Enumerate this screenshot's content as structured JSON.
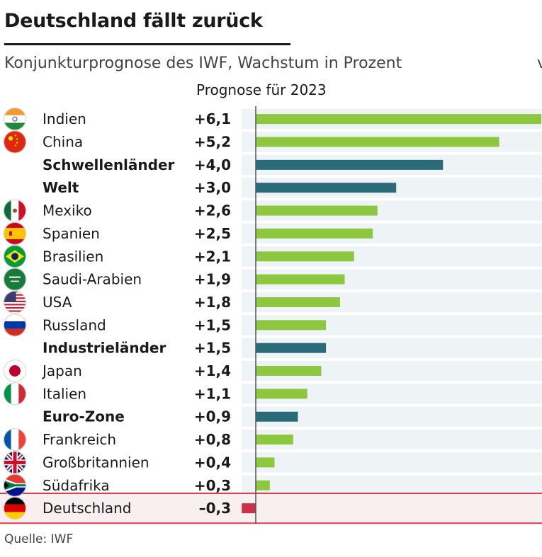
{
  "title": "Deutschland fällt zurück",
  "subtitle": "Konjunkturprognose des IWF, Wachstum in Prozent",
  "subtitle_cut": "v",
  "column_header": "Prognose für 2023",
  "source": "Quelle: IWF",
  "colors": {
    "country_bar": "#8dc63f",
    "aggregate_bar": "#2a6b7a",
    "negative_bar": "#c8324b",
    "row_bg": "#eef3f5",
    "highlight_border": "#d9414f",
    "highlight_bg": "#f9eef0"
  },
  "chart_data": {
    "type": "bar",
    "orientation": "horizontal",
    "categories": [
      "Indien",
      "China",
      "Schwellenländer",
      "Welt",
      "Mexiko",
      "Spanien",
      "Brasilien",
      "Saudi-Arabien",
      "USA",
      "Russland",
      "Industrieländer",
      "Japan",
      "Italien",
      "Euro-Zone",
      "Frankreich",
      "Großbritannien",
      "Südafrika",
      "Deutschland"
    ],
    "value_labels": [
      "+6,1",
      "+5,2",
      "+4,0",
      "+3,0",
      "+2,6",
      "+2,5",
      "+2,1",
      "+1,9",
      "+1,8",
      "+1,5",
      "+1,5",
      "+1,4",
      "+1,1",
      "+0,9",
      "+0,8",
      "+0,4",
      "+0,3",
      "–0,3"
    ],
    "values": [
      6.1,
      5.2,
      4.0,
      3.0,
      2.6,
      2.5,
      2.1,
      1.9,
      1.8,
      1.5,
      1.5,
      1.4,
      1.1,
      0.9,
      0.8,
      0.4,
      0.3,
      -0.3
    ],
    "aggregate": [
      false,
      false,
      true,
      true,
      false,
      false,
      false,
      false,
      false,
      false,
      true,
      false,
      false,
      true,
      false,
      false,
      false,
      false
    ],
    "flags": [
      "india-flag-icon",
      "china-flag-icon",
      "",
      "",
      "mexico-flag-icon",
      "spain-flag-icon",
      "brazil-flag-icon",
      "saudi-arabia-flag-icon",
      "usa-flag-icon",
      "russia-flag-icon",
      "",
      "japan-flag-icon",
      "italy-flag-icon",
      "",
      "france-flag-icon",
      "uk-flag-icon",
      "south-africa-flag-icon",
      "germany-flag-icon"
    ],
    "highlighted": "Deutschland",
    "xlim": [
      -0.3,
      6.1
    ]
  }
}
